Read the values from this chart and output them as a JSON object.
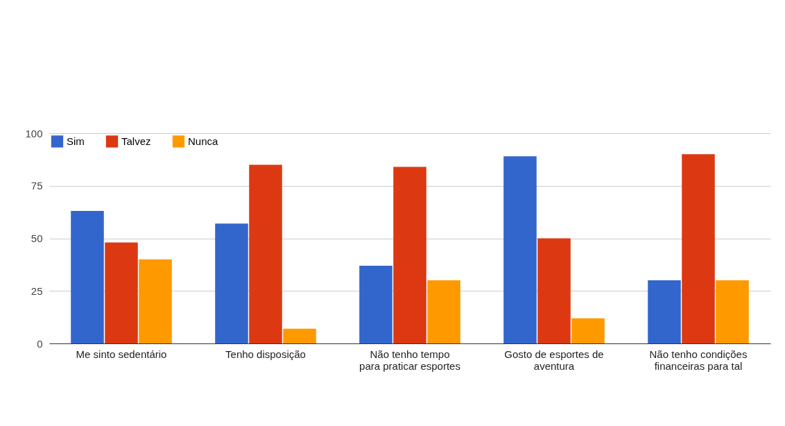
{
  "chart_data": {
    "type": "bar",
    "categories": [
      "Me sinto sedentário",
      "Tenho disposição",
      "Não tenho tempo\npara praticar esportes",
      "Gosto de esportes de\naventura",
      "Não tenho condições\nfinanceiras para tal"
    ],
    "series": [
      {
        "name": "Sim",
        "color": "#3366cc",
        "values": [
          63,
          57,
          37,
          89,
          30
        ]
      },
      {
        "name": "Talvez",
        "color": "#dc3912",
        "values": [
          48,
          85,
          84,
          50,
          90
        ]
      },
      {
        "name": "Nunca",
        "color": "#ff9900",
        "values": [
          40,
          7,
          30,
          12,
          30
        ]
      }
    ],
    "ylim": [
      0,
      100
    ],
    "yticks": [
      0,
      25,
      50,
      75,
      100
    ],
    "grid": "y",
    "legend": "top left"
  }
}
